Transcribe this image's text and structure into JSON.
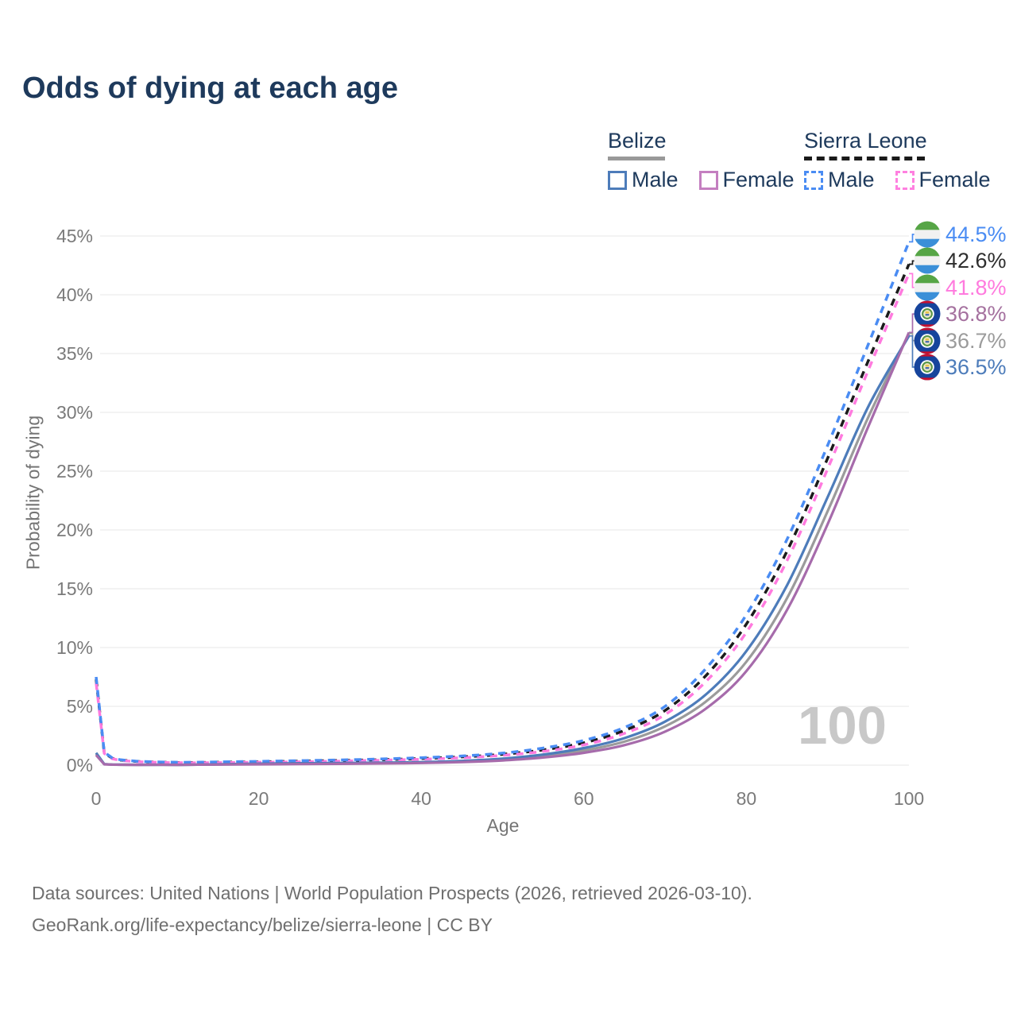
{
  "title": "Odds of dying at each age",
  "watermark": "100",
  "legend": {
    "groups": [
      {
        "name": "Belize",
        "line_style": "solid",
        "underline_color": "#999999",
        "items": [
          {
            "label": "Male",
            "color": "#4d7cba",
            "dashed": false
          },
          {
            "label": "Female",
            "color": "#c47fc0",
            "dashed": false
          }
        ]
      },
      {
        "name": "Sierra Leone",
        "line_style": "dashed",
        "underline_color": "#1a1a1a",
        "items": [
          {
            "label": "Male",
            "color": "#4a8cf3",
            "dashed": true
          },
          {
            "label": "Female",
            "color": "#ff80e0",
            "dashed": true
          }
        ]
      }
    ]
  },
  "footer": {
    "line1": "Data sources: United Nations | World Population Prospects (2026, retrieved 2026-03-10).",
    "line2": "GeoRank.org/life-expectancy/belize/sierra-leone | CC BY"
  },
  "chart_data": {
    "type": "line",
    "title": "Odds of dying at each age",
    "xlabel": "Age",
    "ylabel": "Probability of dying",
    "xlim": [
      0,
      100
    ],
    "ylim": [
      0,
      45
    ],
    "grid": true,
    "legend_position": "top-right",
    "x_ticks": [
      0,
      20,
      40,
      60,
      80,
      100
    ],
    "y_ticks": [
      {
        "value": 0,
        "label": "0%"
      },
      {
        "value": 5,
        "label": "5%"
      },
      {
        "value": 10,
        "label": "10%"
      },
      {
        "value": 15,
        "label": "15%"
      },
      {
        "value": 20,
        "label": "20%"
      },
      {
        "value": 25,
        "label": "25%"
      },
      {
        "value": 30,
        "label": "30%"
      },
      {
        "value": 35,
        "label": "35%"
      },
      {
        "value": 40,
        "label": "40%"
      },
      {
        "value": 45,
        "label": "45%"
      }
    ],
    "x": [
      0,
      1,
      2,
      3,
      5,
      10,
      15,
      20,
      25,
      30,
      35,
      40,
      45,
      50,
      55,
      60,
      65,
      70,
      75,
      80,
      85,
      90,
      95,
      100
    ],
    "series": [
      {
        "name": "Sierra Leone — Male",
        "country": "Sierra Leone",
        "sex": "Male",
        "color": "#4a8cf3",
        "dashed": true,
        "flag": "sierra_leone",
        "end_label": "44.5%",
        "end_value": 44.5,
        "label_color": "#4a8cf3",
        "values": [
          7.5,
          1.1,
          0.6,
          0.45,
          0.33,
          0.24,
          0.27,
          0.32,
          0.38,
          0.44,
          0.52,
          0.63,
          0.78,
          1.02,
          1.45,
          2.1,
          3.2,
          5.0,
          8.2,
          12.8,
          19.2,
          27.2,
          35.8,
          44.5
        ]
      },
      {
        "name": "Sierra Leone — Both sexes",
        "country": "Sierra Leone",
        "sex": "Both",
        "color": "#1b1b1b",
        "dashed": true,
        "flag": "sierra_leone",
        "end_label": "42.6%",
        "end_value": 42.6,
        "label_color": "#2e2e2e",
        "values": [
          7.3,
          1.05,
          0.57,
          0.43,
          0.31,
          0.22,
          0.24,
          0.28,
          0.33,
          0.39,
          0.46,
          0.56,
          0.7,
          0.92,
          1.3,
          1.9,
          2.95,
          4.65,
          7.6,
          12.0,
          18.2,
          26.1,
          34.4,
          42.6
        ]
      },
      {
        "name": "Sierra Leone — Female",
        "country": "Sierra Leone",
        "sex": "Female",
        "color": "#ff7ade",
        "dashed": true,
        "flag": "sierra_leone",
        "end_label": "41.8%",
        "end_value": 41.8,
        "label_color": "#ff7ade",
        "values": [
          7.0,
          1.0,
          0.54,
          0.4,
          0.29,
          0.2,
          0.21,
          0.24,
          0.28,
          0.34,
          0.41,
          0.5,
          0.63,
          0.83,
          1.17,
          1.72,
          2.7,
          4.3,
          7.1,
          11.3,
          17.4,
          25.2,
          33.6,
          41.8
        ]
      },
      {
        "name": "Belize — Female",
        "country": "Belize",
        "sex": "Female",
        "color": "#a66bab",
        "dashed": false,
        "flag": "belize",
        "end_label": "36.8%",
        "end_value": 36.8,
        "label_color": "#a5719f",
        "values": [
          0.85,
          0.07,
          0.04,
          0.033,
          0.027,
          0.024,
          0.045,
          0.07,
          0.09,
          0.11,
          0.14,
          0.18,
          0.26,
          0.4,
          0.65,
          1.05,
          1.7,
          2.85,
          4.8,
          8.0,
          13.2,
          20.5,
          28.8,
          36.8
        ]
      },
      {
        "name": "Belize — Both sexes",
        "country": "Belize",
        "sex": "Both",
        "color": "#9b9b9b",
        "dashed": false,
        "flag": "belize",
        "end_label": "36.7%",
        "end_value": 36.7,
        "label_color": "#9b9b9b",
        "values": [
          0.95,
          0.08,
          0.045,
          0.037,
          0.03,
          0.027,
          0.06,
          0.1,
          0.13,
          0.15,
          0.18,
          0.22,
          0.31,
          0.47,
          0.77,
          1.25,
          2.0,
          3.3,
          5.4,
          8.8,
          14.2,
          21.6,
          29.6,
          36.7
        ]
      },
      {
        "name": "Belize — Male",
        "country": "Belize",
        "sex": "Male",
        "color": "#4d7cba",
        "dashed": false,
        "flag": "belize",
        "end_label": "36.5%",
        "end_value": 36.5,
        "label_color": "#4d7cba",
        "values": [
          1.05,
          0.09,
          0.05,
          0.04,
          0.035,
          0.03,
          0.07,
          0.13,
          0.16,
          0.18,
          0.21,
          0.26,
          0.36,
          0.55,
          0.9,
          1.45,
          2.3,
          3.7,
          6.0,
          9.7,
          15.3,
          22.8,
          30.5,
          36.5
        ]
      }
    ]
  }
}
